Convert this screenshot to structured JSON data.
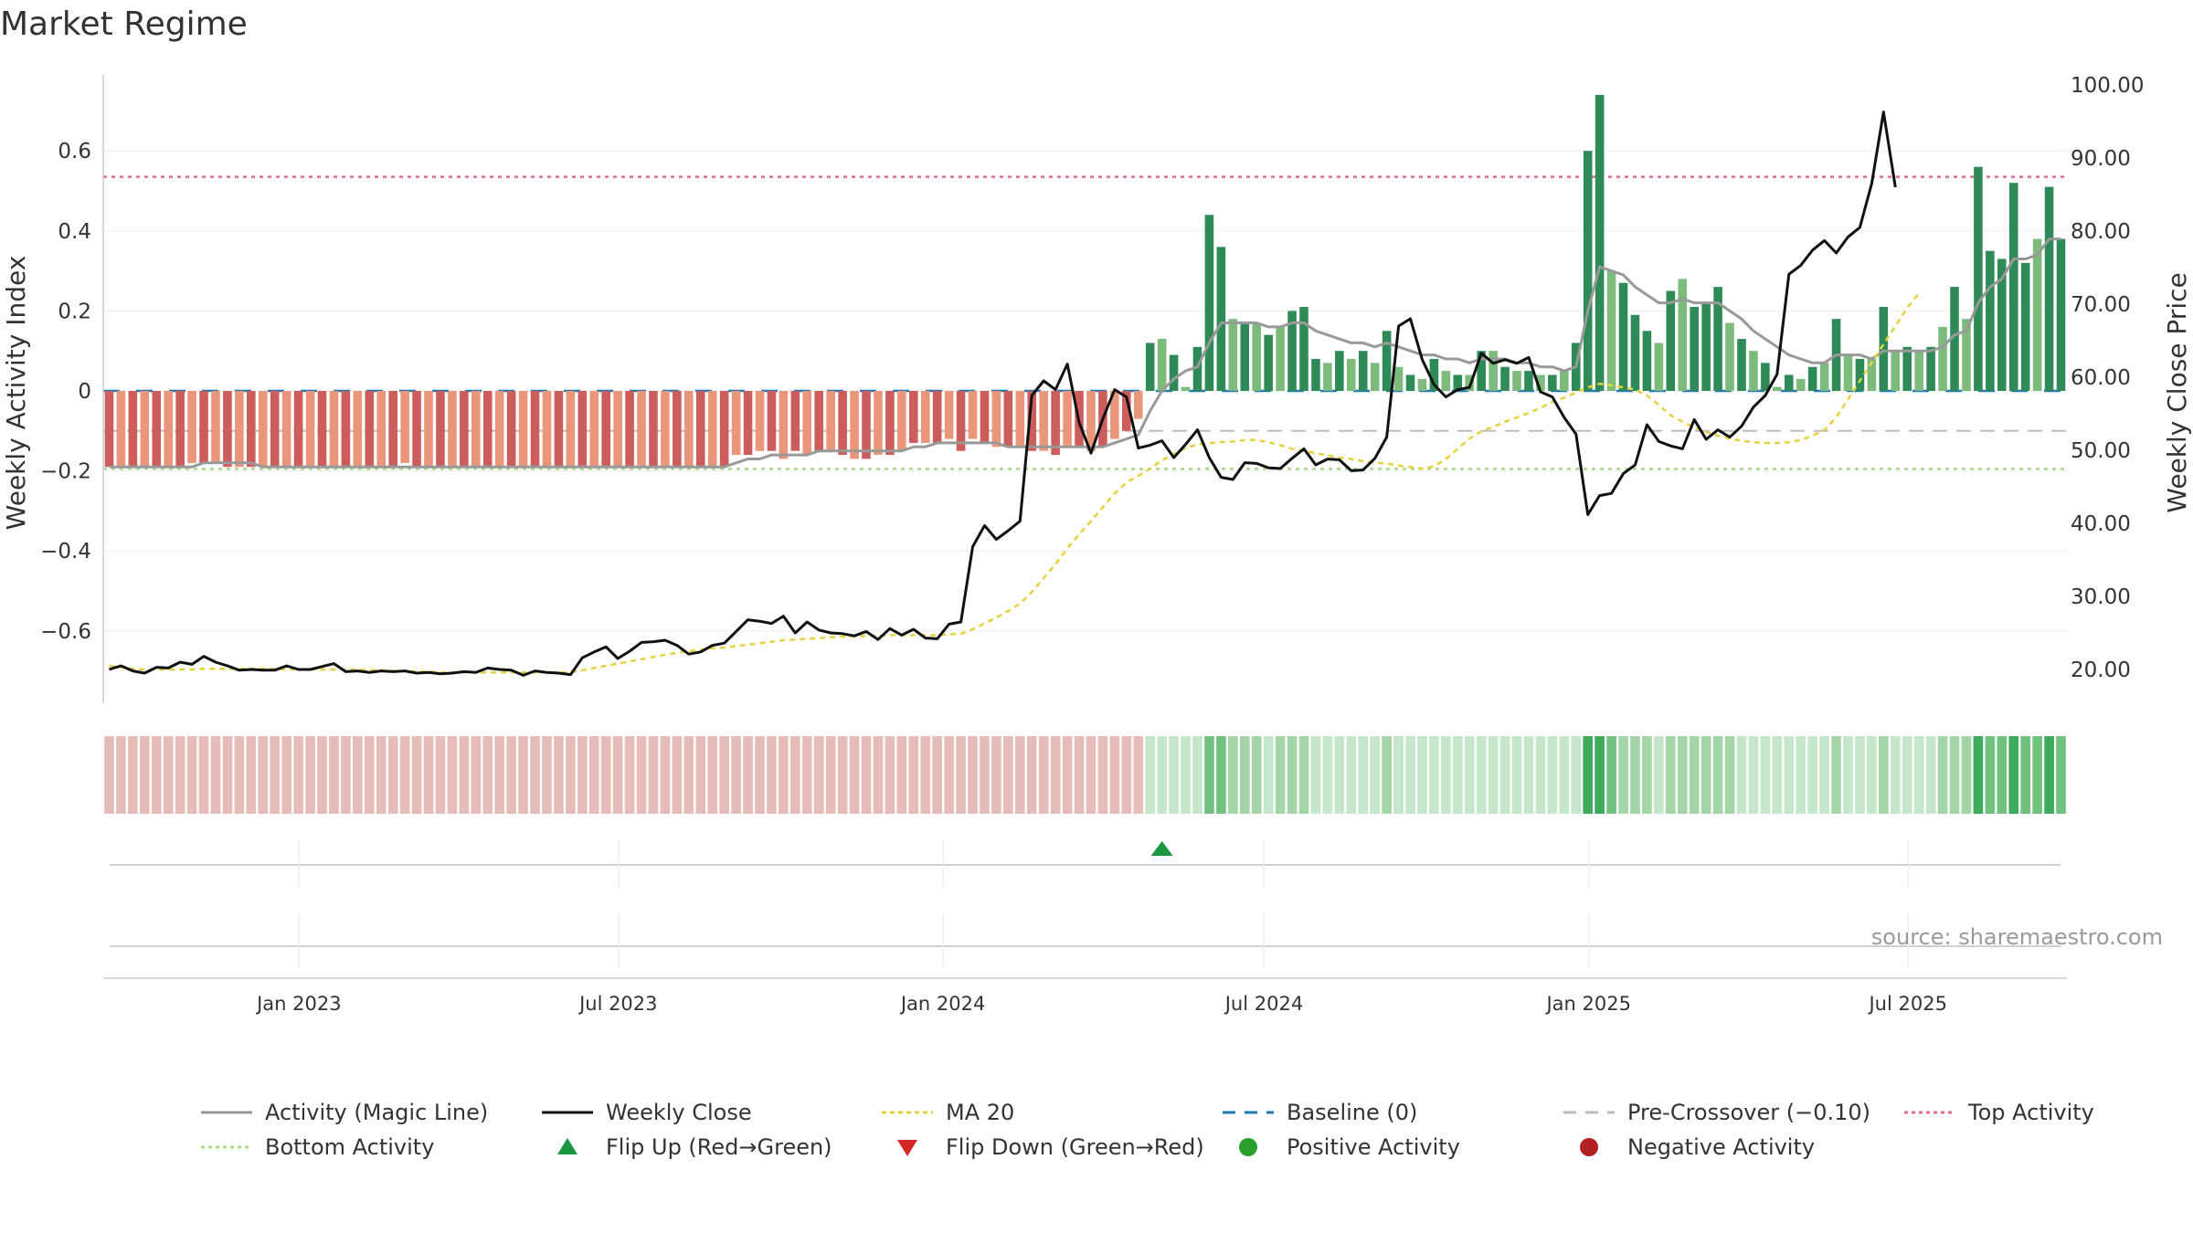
{
  "title": "Market Regime",
  "source": "source: sharemaestro.com",
  "colors": {
    "bar_neg_dark": "#cd5c5c",
    "bar_neg_light": "#e9967a",
    "bar_pos_dark": "#2e8b57",
    "bar_pos_light": "#7dbb7d",
    "magic_line": "#999999",
    "weekly_close": "#111111",
    "ma20": "#e6d23c",
    "baseline": "#1f77b4",
    "precross": "#bbbbbb",
    "top": "#e06c8c",
    "bottom": "#a8d98a",
    "flip_up": "#1a9641",
    "flip_down": "#d62728",
    "pos_dot": "#2ca02c",
    "neg_dot": "#b22222"
  },
  "chart_data": {
    "type": "bar",
    "title": "Market Regime",
    "ylabel_left": "Weekly Activity Index",
    "ylabel_right": "Weekly Close Price",
    "ylim_left": [
      -0.78,
      0.78
    ],
    "ylim_right": [
      15,
      100
    ],
    "yticks_left": [
      "0.6",
      "0.4",
      "0.2",
      "0",
      "−0.2",
      "−0.4",
      "−0.6"
    ],
    "yticks_right": [
      "100.00",
      "90.00",
      "80.00",
      "70.00",
      "60.00",
      "50.00",
      "40.00",
      "30.00",
      "20.00"
    ],
    "x_start": "2022-09-12",
    "x_end": "2025-09-29",
    "date_ticks": [
      "Jan 2023",
      "Jul 2023",
      "Jan 2024",
      "Jul 2024",
      "Jan 2025",
      "Jul 2025"
    ],
    "reference_lines": {
      "top_activity": 0.535,
      "bottom_activity": -0.195,
      "pre_crossover": -0.1,
      "baseline": 0
    },
    "activity": [
      -0.19,
      -0.19,
      -0.19,
      -0.19,
      -0.19,
      -0.19,
      -0.19,
      -0.18,
      -0.18,
      -0.18,
      -0.19,
      -0.19,
      -0.19,
      -0.19,
      -0.19,
      -0.19,
      -0.19,
      -0.19,
      -0.19,
      -0.19,
      -0.19,
      -0.19,
      -0.19,
      -0.19,
      -0.19,
      -0.18,
      -0.19,
      -0.19,
      -0.19,
      -0.19,
      -0.19,
      -0.19,
      -0.19,
      -0.19,
      -0.19,
      -0.19,
      -0.19,
      -0.19,
      -0.19,
      -0.19,
      -0.19,
      -0.19,
      -0.19,
      -0.19,
      -0.19,
      -0.19,
      -0.19,
      -0.19,
      -0.19,
      -0.19,
      -0.19,
      -0.19,
      -0.19,
      -0.16,
      -0.16,
      -0.15,
      -0.15,
      -0.17,
      -0.15,
      -0.16,
      -0.15,
      -0.15,
      -0.16,
      -0.17,
      -0.17,
      -0.16,
      -0.16,
      -0.15,
      -0.13,
      -0.13,
      -0.13,
      -0.12,
      -0.15,
      -0.12,
      -0.13,
      -0.14,
      -0.14,
      -0.14,
      -0.15,
      -0.15,
      -0.16,
      -0.14,
      -0.14,
      -0.15,
      -0.14,
      -0.12,
      -0.1,
      -0.07,
      0.12,
      0.13,
      0.09,
      0.01,
      0.11,
      0.44,
      0.36,
      0.18,
      0.17,
      0.17,
      0.14,
      0.16,
      0.2,
      0.21,
      0.08,
      0.07,
      0.1,
      0.08,
      0.1,
      0.07,
      0.15,
      0.06,
      0.04,
      0.03,
      0.08,
      0.05,
      0.04,
      0.04,
      0.1,
      0.1,
      0.06,
      0.05,
      0.05,
      0.04,
      0.04,
      0.05,
      0.12,
      0.6,
      0.74,
      0.3,
      0.27,
      0.19,
      0.15,
      0.12,
      0.25,
      0.28,
      0.21,
      0.22,
      0.26,
      0.17,
      0.13,
      0.1,
      0.07,
      0.01,
      0.04,
      0.03,
      0.06,
      0.07,
      0.18,
      0.09,
      0.08,
      0.08,
      0.21,
      0.1,
      0.11,
      0.1,
      0.11,
      0.16,
      0.26,
      0.18,
      0.56,
      0.35,
      0.33,
      0.52,
      0.32,
      0.38,
      0.51,
      0.38
    ],
    "magic_line": [
      -0.19,
      -0.19,
      -0.19,
      -0.19,
      -0.19,
      -0.19,
      -0.19,
      -0.19,
      -0.18,
      -0.18,
      -0.18,
      -0.18,
      -0.18,
      -0.19,
      -0.19,
      -0.19,
      -0.19,
      -0.19,
      -0.19,
      -0.19,
      -0.19,
      -0.19,
      -0.19,
      -0.19,
      -0.19,
      -0.19,
      -0.19,
      -0.19,
      -0.19,
      -0.19,
      -0.19,
      -0.19,
      -0.19,
      -0.19,
      -0.19,
      -0.19,
      -0.19,
      -0.19,
      -0.19,
      -0.19,
      -0.19,
      -0.19,
      -0.19,
      -0.19,
      -0.19,
      -0.19,
      -0.19,
      -0.19,
      -0.19,
      -0.19,
      -0.19,
      -0.19,
      -0.19,
      -0.18,
      -0.17,
      -0.17,
      -0.16,
      -0.16,
      -0.16,
      -0.16,
      -0.15,
      -0.15,
      -0.15,
      -0.15,
      -0.15,
      -0.15,
      -0.15,
      -0.15,
      -0.14,
      -0.14,
      -0.13,
      -0.13,
      -0.13,
      -0.13,
      -0.13,
      -0.13,
      -0.14,
      -0.14,
      -0.14,
      -0.14,
      -0.14,
      -0.14,
      -0.14,
      -0.14,
      -0.14,
      -0.13,
      -0.12,
      -0.11,
      -0.05,
      0.0,
      0.03,
      0.05,
      0.06,
      0.12,
      0.17,
      0.17,
      0.17,
      0.17,
      0.16,
      0.16,
      0.17,
      0.17,
      0.15,
      0.14,
      0.13,
      0.12,
      0.12,
      0.11,
      0.12,
      0.11,
      0.1,
      0.09,
      0.09,
      0.08,
      0.08,
      0.07,
      0.08,
      0.08,
      0.08,
      0.07,
      0.07,
      0.06,
      0.06,
      0.05,
      0.06,
      0.2,
      0.31,
      0.3,
      0.29,
      0.26,
      0.24,
      0.22,
      0.22,
      0.23,
      0.22,
      0.22,
      0.22,
      0.2,
      0.18,
      0.15,
      0.13,
      0.11,
      0.09,
      0.08,
      0.07,
      0.07,
      0.09,
      0.09,
      0.09,
      0.08,
      0.1,
      0.1,
      0.1,
      0.1,
      0.1,
      0.11,
      0.14,
      0.15,
      0.22,
      0.26,
      0.28,
      0.33,
      0.33,
      0.34,
      0.38,
      0.38
    ],
    "weekly_close": [
      20.0,
      20.5,
      19.8,
      19.5,
      20.3,
      20.2,
      21.0,
      20.7,
      21.8,
      21.0,
      20.5,
      19.9,
      20.0,
      19.9,
      19.9,
      20.5,
      20.0,
      20.0,
      20.4,
      20.8,
      19.7,
      19.8,
      19.6,
      19.8,
      19.7,
      19.8,
      19.5,
      19.6,
      19.4,
      19.5,
      19.7,
      19.6,
      20.2,
      20.0,
      19.9,
      19.2,
      19.8,
      19.6,
      19.5,
      19.3,
      21.6,
      22.4,
      23.1,
      21.5,
      22.5,
      23.7,
      23.8,
      24.0,
      23.3,
      22.1,
      22.4,
      23.3,
      23.6,
      25.2,
      26.8,
      26.6,
      26.3,
      27.3,
      25.0,
      26.5,
      25.4,
      25.0,
      24.9,
      24.6,
      25.2,
      24.1,
      25.6,
      24.7,
      25.5,
      24.3,
      24.2,
      26.2,
      26.5,
      36.8,
      39.7,
      37.8,
      39.0,
      40.3,
      57.5,
      59.5,
      58.3,
      61.8,
      53.8,
      49.6,
      54.3,
      58.3,
      57.3,
      50.3,
      50.7,
      51.3,
      49.0,
      50.8,
      52.8,
      49.0,
      46.3,
      46.0,
      48.3,
      48.2,
      47.6,
      47.5,
      48.9,
      50.2,
      48.0,
      48.8,
      48.7,
      47.2,
      47.3,
      48.9,
      51.8,
      67.0,
      68.0,
      62.4,
      59.0,
      57.3,
      58.3,
      58.6,
      63.3,
      61.9,
      62.4,
      61.9,
      62.7,
      58.0,
      57.3,
      54.5,
      52.2,
      41.2,
      43.8,
      44.1,
      46.8,
      48.0,
      53.5,
      51.2,
      50.6,
      50.2,
      54.2,
      51.5,
      52.8,
      51.8,
      53.3,
      55.9,
      57.5,
      60.4,
      74.1,
      75.3,
      77.4,
      78.7,
      77.0,
      79.2,
      80.5,
      86.5,
      96.3,
      86.0
    ],
    "ma20": [
      20.5,
      20.3,
      20.1,
      20.0,
      20.0,
      20.0,
      20.0,
      20.0,
      20.1,
      20.1,
      20.1,
      20.1,
      20.1,
      20.1,
      20.1,
      20.0,
      20.0,
      20.0,
      20.0,
      20.0,
      20.0,
      20.0,
      19.9,
      19.9,
      19.8,
      19.8,
      19.7,
      19.7,
      19.6,
      19.6,
      19.6,
      19.6,
      19.6,
      19.6,
      19.6,
      19.6,
      19.6,
      19.6,
      19.6,
      19.6,
      19.9,
      20.2,
      20.5,
      20.8,
      21.1,
      21.4,
      21.7,
      22.0,
      22.3,
      22.5,
      22.7,
      22.9,
      23.0,
      23.2,
      23.4,
      23.6,
      23.8,
      24.0,
      24.1,
      24.2,
      24.3,
      24.4,
      24.5,
      24.5,
      24.6,
      24.6,
      24.7,
      24.7,
      24.7,
      24.7,
      24.7,
      24.8,
      24.9,
      25.5,
      26.3,
      27.1,
      28.0,
      29.0,
      30.6,
      32.5,
      34.4,
      36.6,
      38.5,
      40.3,
      42.2,
      44.1,
      45.6,
      46.5,
      47.5,
      48.6,
      49.5,
      50.3,
      50.8,
      51.0,
      51.1,
      51.2,
      51.4,
      51.4,
      51.1,
      50.7,
      50.2,
      49.9,
      49.6,
      49.3,
      49.0,
      48.8,
      48.5,
      48.3,
      48.2,
      47.9,
      47.7,
      47.5,
      47.8,
      48.8,
      50.2,
      51.6,
      52.6,
      53.2,
      53.9,
      54.5,
      55.1,
      55.8,
      56.6,
      57.2,
      57.9,
      58.6,
      59.1,
      58.9,
      58.6,
      58.3,
      57.5,
      56.2,
      54.8,
      53.9,
      53.1,
      52.5,
      52.0,
      51.6,
      51.3,
      51.1,
      51.0,
      51.0,
      51.1,
      51.4,
      52.0,
      52.8,
      54.5,
      57.0,
      59.5,
      62.0,
      64.5,
      67.0,
      69.5,
      71.5
    ],
    "regime_strip": "Red for weeks 1-88, green thereafter",
    "flip_up_week": 89,
    "legend": [
      "Activity (Magic Line)",
      "Weekly Close",
      "MA 20",
      "Baseline (0)",
      "Pre-Crossover (−0.10)",
      "Top Activity",
      "Bottom Activity",
      "Flip Up (Red→Green)",
      "Flip Down (Green→Red)",
      "Positive Activity",
      "Negative Activity"
    ],
    "legend_placement": "bottom"
  }
}
